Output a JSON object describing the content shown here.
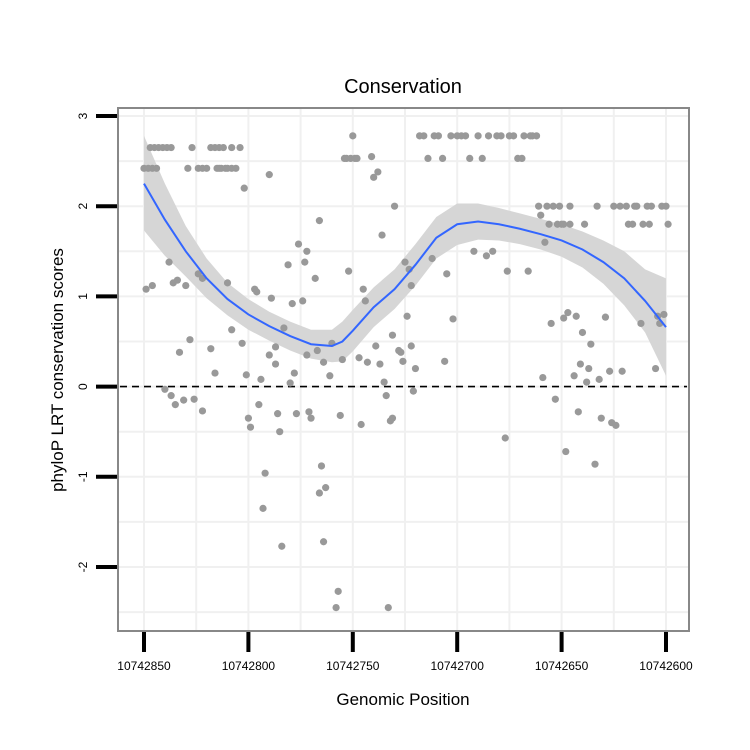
{
  "chart_data": {
    "type": "scatter",
    "title": "Conservation",
    "xlabel": "Genomic Position",
    "ylabel": "phyloP LRT conservation scores",
    "x_reversed": true,
    "xlim": [
      10742600,
      10742850
    ],
    "ylim": [
      -2.6,
      3.0
    ],
    "x_ticks": [
      10742850,
      10742800,
      10742750,
      10742700,
      10742650,
      10742600
    ],
    "x_tick_labels": [
      "10742850",
      "10742800",
      "10742750",
      "10742700",
      "10742650",
      "10742600"
    ],
    "y_ticks": [
      3,
      2,
      1,
      0,
      -1,
      -2
    ],
    "y_tick_labels": [
      "3",
      "2",
      "1",
      "0",
      "-1",
      "-2"
    ],
    "grid": true,
    "reference_line": {
      "y": 0,
      "style": "dashed"
    },
    "colors": {
      "points": "#999999",
      "smooth": "#3366ff",
      "ribbon": "#d6d6d6",
      "panel_border": "#888888"
    },
    "points": [
      [
        10742850,
        2.42
      ],
      [
        10742848,
        2.42
      ],
      [
        10742846,
        2.42
      ],
      [
        10742844,
        2.42
      ],
      [
        10742847,
        2.65
      ],
      [
        10742845,
        2.65
      ],
      [
        10742843,
        2.65
      ],
      [
        10742841,
        2.65
      ],
      [
        10742839,
        2.65
      ],
      [
        10742837,
        2.65
      ],
      [
        10742849,
        1.08
      ],
      [
        10742846,
        1.12
      ],
      [
        10742838,
        1.38
      ],
      [
        10742836,
        1.15
      ],
      [
        10742834,
        1.18
      ],
      [
        10742840,
        -0.03
      ],
      [
        10742837,
        -0.1
      ],
      [
        10742835,
        -0.2
      ],
      [
        10742833,
        0.38
      ],
      [
        10742831,
        -0.15
      ],
      [
        10742830,
        1.12
      ],
      [
        10742828,
        0.52
      ],
      [
        10742829,
        2.42
      ],
      [
        10742827,
        2.65
      ],
      [
        10742826,
        -0.14
      ],
      [
        10742824,
        2.42
      ],
      [
        10742822,
        2.42
      ],
      [
        10742820,
        2.42
      ],
      [
        10742824,
        1.25
      ],
      [
        10742822,
        1.2
      ],
      [
        10742822,
        -0.27
      ],
      [
        10742818,
        2.65
      ],
      [
        10742816,
        2.65
      ],
      [
        10742814,
        2.65
      ],
      [
        10742812,
        2.65
      ],
      [
        10742818,
        0.42
      ],
      [
        10742815,
        2.42
      ],
      [
        10742813,
        2.42
      ],
      [
        10742811,
        2.42
      ],
      [
        10742810,
        2.42
      ],
      [
        10742816,
        0.15
      ],
      [
        10742814,
        2.42
      ],
      [
        10742810,
        1.15
      ],
      [
        10742808,
        2.65
      ],
      [
        10742808,
        0.63
      ],
      [
        10742808,
        2.42
      ],
      [
        10742806,
        2.42
      ],
      [
        10742804,
        2.65
      ],
      [
        10742803,
        0.48
      ],
      [
        10742802,
        2.2
      ],
      [
        10742801,
        0.13
      ],
      [
        10742800,
        -0.35
      ],
      [
        10742799,
        -0.45
      ],
      [
        10742797,
        1.08
      ],
      [
        10742796,
        1.05
      ],
      [
        10742795,
        -0.2
      ],
      [
        10742794,
        0.08
      ],
      [
        10742793,
        -1.35
      ],
      [
        10742792,
        -0.96
      ],
      [
        10742790,
        0.35
      ],
      [
        10742790,
        2.35
      ],
      [
        10742789,
        0.98
      ],
      [
        10742787,
        0.44
      ],
      [
        10742787,
        0.25
      ],
      [
        10742786,
        -0.3
      ],
      [
        10742785,
        -0.5
      ],
      [
        10742784,
        -1.77
      ],
      [
        10742783,
        0.65
      ],
      [
        10742781,
        1.35
      ],
      [
        10742780,
        0.04
      ],
      [
        10742779,
        0.92
      ],
      [
        10742778,
        0.15
      ],
      [
        10742777,
        -0.3
      ],
      [
        10742776,
        1.58
      ],
      [
        10742774,
        0.95
      ],
      [
        10742773,
        1.38
      ],
      [
        10742772,
        1.5
      ],
      [
        10742772,
        0.35
      ],
      [
        10742771,
        -0.28
      ],
      [
        10742770,
        -0.35
      ],
      [
        10742768,
        1.2
      ],
      [
        10742767,
        0.4
      ],
      [
        10742766,
        -1.18
      ],
      [
        10742766,
        1.84
      ],
      [
        10742765,
        -0.88
      ],
      [
        10742764,
        0.27
      ],
      [
        10742763,
        -1.12
      ],
      [
        10742764,
        -1.72
      ],
      [
        10742761,
        0.12
      ],
      [
        10742760,
        0.48
      ],
      [
        10742758,
        -2.45
      ],
      [
        10742757,
        -2.27
      ],
      [
        10742756,
        -0.32
      ],
      [
        10742755,
        0.3
      ],
      [
        10742754,
        2.53
      ],
      [
        10742753,
        2.53
      ],
      [
        10742752,
        1.28
      ],
      [
        10742751,
        2.53
      ],
      [
        10742750,
        2.78
      ],
      [
        10742749,
        2.53
      ],
      [
        10742748,
        2.53
      ],
      [
        10742747,
        0.32
      ],
      [
        10742746,
        -0.42
      ],
      [
        10742745,
        1.08
      ],
      [
        10742744,
        0.95
      ],
      [
        10742743,
        0.27
      ],
      [
        10742741,
        2.55
      ],
      [
        10742740,
        2.32
      ],
      [
        10742739,
        0.45
      ],
      [
        10742738,
        2.38
      ],
      [
        10742737,
        0.25
      ],
      [
        10742736,
        1.68
      ],
      [
        10742735,
        0.05
      ],
      [
        10742734,
        -0.1
      ],
      [
        10742733,
        -2.45
      ],
      [
        10742732,
        -0.38
      ],
      [
        10742731,
        -0.35
      ],
      [
        10742731,
        0.57
      ],
      [
        10742730,
        2.0
      ],
      [
        10742728,
        0.4
      ],
      [
        10742727,
        0.38
      ],
      [
        10742726,
        0.28
      ],
      [
        10742725,
        1.38
      ],
      [
        10742724,
        0.78
      ],
      [
        10742723,
        1.3
      ],
      [
        10742722,
        1.12
      ],
      [
        10742722,
        0.45
      ],
      [
        10742721,
        -0.05
      ],
      [
        10742720,
        0.2
      ],
      [
        10742718,
        2.78
      ],
      [
        10742716,
        2.78
      ],
      [
        10742714,
        2.53
      ],
      [
        10742712,
        1.42
      ],
      [
        10742711,
        2.78
      ],
      [
        10742709,
        2.78
      ],
      [
        10742707,
        2.53
      ],
      [
        10742706,
        0.28
      ],
      [
        10742705,
        1.25
      ],
      [
        10742703,
        2.78
      ],
      [
        10742702,
        0.75
      ],
      [
        10742700,
        2.78
      ],
      [
        10742698,
        2.78
      ],
      [
        10742696,
        2.78
      ],
      [
        10742694,
        2.53
      ],
      [
        10742692,
        1.5
      ],
      [
        10742690,
        2.78
      ],
      [
        10742688,
        2.53
      ],
      [
        10742686,
        1.45
      ],
      [
        10742685,
        2.78
      ],
      [
        10742683,
        1.5
      ],
      [
        10742681,
        2.78
      ],
      [
        10742679,
        2.78
      ],
      [
        10742677,
        -0.57
      ],
      [
        10742676,
        1.28
      ],
      [
        10742675,
        2.78
      ],
      [
        10742673,
        2.78
      ],
      [
        10742671,
        2.53
      ],
      [
        10742669,
        2.53
      ],
      [
        10742668,
        2.78
      ],
      [
        10742666,
        1.28
      ],
      [
        10742665,
        2.78
      ],
      [
        10742664,
        2.78
      ],
      [
        10742662,
        2.78
      ],
      [
        10742661,
        2.0
      ],
      [
        10742660,
        1.9
      ],
      [
        10742659,
        0.1
      ],
      [
        10742658,
        1.6
      ],
      [
        10742657,
        2.0
      ],
      [
        10742656,
        1.8
      ],
      [
        10742655,
        0.7
      ],
      [
        10742654,
        2.0
      ],
      [
        10742653,
        -0.14
      ],
      [
        10742652,
        1.8
      ],
      [
        10742651,
        2.0
      ],
      [
        10742650,
        1.8
      ],
      [
        10742649,
        0.76
      ],
      [
        10742649,
        1.8
      ],
      [
        10742648,
        -0.72
      ],
      [
        10742647,
        0.82
      ],
      [
        10742646,
        1.8
      ],
      [
        10742646,
        2.0
      ],
      [
        10742644,
        0.12
      ],
      [
        10742643,
        0.78
      ],
      [
        10742642,
        -0.28
      ],
      [
        10742641,
        0.25
      ],
      [
        10742640,
        0.6
      ],
      [
        10742639,
        1.8
      ],
      [
        10742638,
        0.05
      ],
      [
        10742637,
        0.2
      ],
      [
        10742636,
        0.47
      ],
      [
        10742634,
        -0.86
      ],
      [
        10742633,
        2.0
      ],
      [
        10742632,
        0.08
      ],
      [
        10742631,
        -0.35
      ],
      [
        10742629,
        0.77
      ],
      [
        10742627,
        0.17
      ],
      [
        10742626,
        -0.4
      ],
      [
        10742625,
        2.0
      ],
      [
        10742624,
        -0.43
      ],
      [
        10742622,
        2.0
      ],
      [
        10742621,
        0.17
      ],
      [
        10742619,
        2.0
      ],
      [
        10742618,
        1.8
      ],
      [
        10742616,
        1.8
      ],
      [
        10742615,
        2.0
      ],
      [
        10742614,
        2.0
      ],
      [
        10742612,
        0.7
      ],
      [
        10742611,
        1.8
      ],
      [
        10742609,
        2.0
      ],
      [
        10742608,
        1.8
      ],
      [
        10742607,
        2.0
      ],
      [
        10742605,
        0.2
      ],
      [
        10742604,
        0.78
      ],
      [
        10742603,
        0.7
      ],
      [
        10742602,
        2.0
      ],
      [
        10742600,
        2.0
      ],
      [
        10742599,
        1.8
      ],
      [
        10742601,
        0.8
      ]
    ],
    "smooth": [
      [
        10742850,
        2.25
      ],
      [
        10742840,
        1.85
      ],
      [
        10742830,
        1.5
      ],
      [
        10742820,
        1.2
      ],
      [
        10742810,
        0.97
      ],
      [
        10742800,
        0.8
      ],
      [
        10742790,
        0.67
      ],
      [
        10742780,
        0.56
      ],
      [
        10742770,
        0.47
      ],
      [
        10742760,
        0.45
      ],
      [
        10742755,
        0.5
      ],
      [
        10742750,
        0.62
      ],
      [
        10742740,
        0.88
      ],
      [
        10742730,
        1.08
      ],
      [
        10742720,
        1.35
      ],
      [
        10742710,
        1.65
      ],
      [
        10742700,
        1.8
      ],
      [
        10742690,
        1.83
      ],
      [
        10742680,
        1.8
      ],
      [
        10742670,
        1.75
      ],
      [
        10742660,
        1.69
      ],
      [
        10742650,
        1.62
      ],
      [
        10742640,
        1.52
      ],
      [
        10742630,
        1.38
      ],
      [
        10742620,
        1.2
      ],
      [
        10742610,
        0.95
      ],
      [
        10742600,
        0.66
      ]
    ],
    "ribbon_upper": [
      [
        10742850,
        2.78
      ],
      [
        10742840,
        2.25
      ],
      [
        10742830,
        1.78
      ],
      [
        10742820,
        1.42
      ],
      [
        10742810,
        1.15
      ],
      [
        10742800,
        0.97
      ],
      [
        10742790,
        0.83
      ],
      [
        10742780,
        0.72
      ],
      [
        10742770,
        0.63
      ],
      [
        10742760,
        0.63
      ],
      [
        10742755,
        0.72
      ],
      [
        10742750,
        0.85
      ],
      [
        10742740,
        1.1
      ],
      [
        10742730,
        1.3
      ],
      [
        10742720,
        1.58
      ],
      [
        10742710,
        1.88
      ],
      [
        10742700,
        2.03
      ],
      [
        10742690,
        2.03
      ],
      [
        10742680,
        1.98
      ],
      [
        10742670,
        1.92
      ],
      [
        10742660,
        1.86
      ],
      [
        10742650,
        1.8
      ],
      [
        10742640,
        1.72
      ],
      [
        10742630,
        1.62
      ],
      [
        10742620,
        1.5
      ],
      [
        10742610,
        1.3
      ],
      [
        10742600,
        1.2
      ]
    ],
    "ribbon_lower": [
      [
        10742850,
        1.73
      ],
      [
        10742840,
        1.45
      ],
      [
        10742830,
        1.22
      ],
      [
        10742820,
        0.98
      ],
      [
        10742810,
        0.79
      ],
      [
        10742800,
        0.63
      ],
      [
        10742790,
        0.51
      ],
      [
        10742780,
        0.4
      ],
      [
        10742770,
        0.31
      ],
      [
        10742760,
        0.27
      ],
      [
        10742755,
        0.28
      ],
      [
        10742750,
        0.39
      ],
      [
        10742740,
        0.66
      ],
      [
        10742730,
        0.86
      ],
      [
        10742720,
        1.12
      ],
      [
        10742710,
        1.42
      ],
      [
        10742700,
        1.57
      ],
      [
        10742690,
        1.63
      ],
      [
        10742680,
        1.62
      ],
      [
        10742670,
        1.58
      ],
      [
        10742660,
        1.52
      ],
      [
        10742650,
        1.44
      ],
      [
        10742640,
        1.32
      ],
      [
        10742630,
        1.14
      ],
      [
        10742620,
        0.9
      ],
      [
        10742610,
        0.6
      ],
      [
        10742600,
        0.12
      ]
    ]
  }
}
